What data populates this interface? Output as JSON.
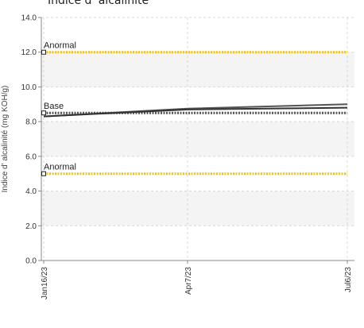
{
  "chart_data": {
    "type": "line",
    "title": "Indice d' alcalinité",
    "ylabel": "Indice d' alcalinité (mg KOH/g)",
    "xlabel": "",
    "ylim": [
      0,
      14
    ],
    "y_ticks": [
      0,
      2,
      4,
      6,
      8,
      10,
      12,
      14
    ],
    "y_tick_labels": [
      "0.0",
      "2.0",
      "4.0",
      "6.0",
      "8.0",
      "10.0",
      "12.0",
      "14.0"
    ],
    "x_domain": [
      "2023-01-16",
      "2023-07-06"
    ],
    "x_ticks": [
      {
        "date": "2023-01-16",
        "label": "Jan16/23"
      },
      {
        "date": "2023-04-07",
        "label": "Apr7/23"
      },
      {
        "date": "2023-07-06",
        "label": "Jul6/23"
      }
    ],
    "grid": true,
    "series": [
      {
        "name": "",
        "color": "#555555",
        "x": [
          "2023-01-16",
          "2023-04-07",
          "2023-07-06"
        ],
        "y": [
          8.3,
          8.75,
          9.0
        ]
      },
      {
        "name": "",
        "color": "#333333",
        "x": [
          "2023-01-16",
          "2023-04-07",
          "2023-07-06"
        ],
        "y": [
          8.3,
          8.7,
          8.8
        ]
      }
    ],
    "reference_lines": [
      {
        "label": "Anormal",
        "value": 12.0,
        "color": "#f2c20a",
        "style": "dotted"
      },
      {
        "label": "Base",
        "value": 8.5,
        "color": "#555555",
        "style": "dotted"
      },
      {
        "label": "Anormal",
        "value": 5.0,
        "color": "#f2c20a",
        "style": "dotted"
      }
    ],
    "band_color": "#f4f4f4"
  }
}
